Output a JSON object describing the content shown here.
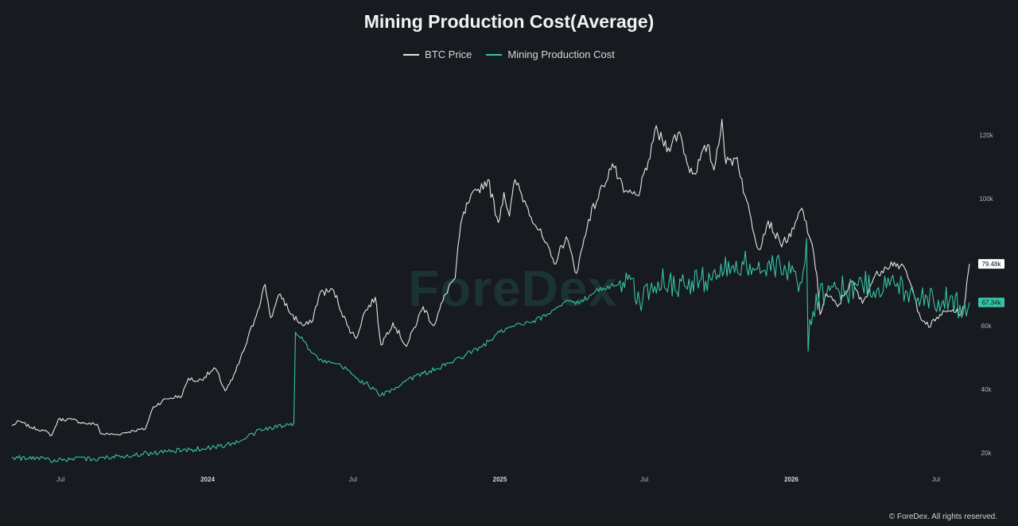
{
  "chart_data": {
    "type": "line",
    "title": "Mining Production Cost(Average)",
    "legend_position": "top-center",
    "grid": false,
    "x_range": [
      "2023-05-01",
      "2026-08-15"
    ],
    "ylim": [
      15000,
      130000
    ],
    "y_axis_side": "right",
    "x_ticks": [
      {
        "date": "2023-07-01",
        "label": "Jul",
        "bold": false
      },
      {
        "date": "2024-01-01",
        "label": "2024",
        "bold": true
      },
      {
        "date": "2024-07-01",
        "label": "Jul",
        "bold": false
      },
      {
        "date": "2025-01-01",
        "label": "2025",
        "bold": true
      },
      {
        "date": "2025-07-01",
        "label": "Jul",
        "bold": false
      },
      {
        "date": "2026-01-01",
        "label": "2026",
        "bold": true
      },
      {
        "date": "2026-07-01",
        "label": "Jul",
        "bold": false
      }
    ],
    "y_ticks": [
      {
        "value": 20000,
        "label": "20k"
      },
      {
        "value": 40000,
        "label": "40k"
      },
      {
        "value": 60000,
        "label": "60k"
      },
      {
        "value": 100000,
        "label": "100k"
      },
      {
        "value": 120000,
        "label": "120k"
      }
    ],
    "series": [
      {
        "name": "BTC Price",
        "color": "#e6e6e6",
        "last_value_label": "79.48k",
        "points": [
          [
            "2023-05-01",
            28500
          ],
          [
            "2023-05-10",
            30000
          ],
          [
            "2023-05-25",
            28000
          ],
          [
            "2023-06-10",
            27000
          ],
          [
            "2023-06-20",
            25500
          ],
          [
            "2023-06-28",
            30500
          ],
          [
            "2023-07-15",
            30500
          ],
          [
            "2023-07-31",
            29300
          ],
          [
            "2023-08-16",
            29000
          ],
          [
            "2023-08-20",
            26000
          ],
          [
            "2023-09-10",
            25800
          ],
          [
            "2023-09-30",
            27000
          ],
          [
            "2023-10-15",
            27500
          ],
          [
            "2023-10-25",
            34500
          ],
          [
            "2023-11-10",
            37000
          ],
          [
            "2023-11-30",
            38000
          ],
          [
            "2023-12-08",
            43500
          ],
          [
            "2023-12-20",
            42500
          ],
          [
            "2024-01-11",
            46500
          ],
          [
            "2024-01-23",
            39500
          ],
          [
            "2024-02-01",
            43000
          ],
          [
            "2024-02-15",
            52000
          ],
          [
            "2024-02-29",
            62000
          ],
          [
            "2024-03-13",
            73000
          ],
          [
            "2024-03-20",
            62500
          ],
          [
            "2024-04-01",
            70000
          ],
          [
            "2024-04-15",
            63500
          ],
          [
            "2024-04-30",
            60000
          ],
          [
            "2024-05-10",
            61000
          ],
          [
            "2024-05-21",
            70500
          ],
          [
            "2024-06-07",
            71000
          ],
          [
            "2024-06-24",
            60000
          ],
          [
            "2024-07-05",
            56000
          ],
          [
            "2024-07-15",
            64000
          ],
          [
            "2024-07-29",
            69000
          ],
          [
            "2024-08-05",
            54000
          ],
          [
            "2024-08-20",
            61000
          ],
          [
            "2024-09-06",
            53500
          ],
          [
            "2024-09-27",
            66000
          ],
          [
            "2024-10-10",
            60000
          ],
          [
            "2024-10-29",
            72500
          ],
          [
            "2024-11-06",
            75000
          ],
          [
            "2024-11-13",
            92000
          ],
          [
            "2024-11-22",
            98500
          ],
          [
            "2024-12-05",
            103000
          ],
          [
            "2024-12-17",
            106000
          ],
          [
            "2024-12-30",
            92500
          ],
          [
            "2025-01-06",
            102000
          ],
          [
            "2025-01-13",
            94500
          ],
          [
            "2025-01-20",
            106000
          ],
          [
            "2025-02-03",
            98000
          ],
          [
            "2025-02-25",
            87000
          ],
          [
            "2025-03-10",
            79500
          ],
          [
            "2025-03-25",
            88000
          ],
          [
            "2025-04-07",
            76500
          ],
          [
            "2025-04-22",
            93500
          ],
          [
            "2025-05-10",
            104000
          ],
          [
            "2025-05-22",
            111000
          ],
          [
            "2025-06-05",
            102000
          ],
          [
            "2025-06-22",
            101000
          ],
          [
            "2025-07-04",
            109000
          ],
          [
            "2025-07-14",
            121500
          ],
          [
            "2025-07-31",
            116000
          ],
          [
            "2025-08-14",
            121000
          ],
          [
            "2025-08-25",
            110000
          ],
          [
            "2025-09-01",
            108000
          ],
          [
            "2025-09-18",
            117000
          ],
          [
            "2025-09-26",
            109000
          ],
          [
            "2025-10-06",
            125000
          ],
          [
            "2025-10-11",
            111000
          ],
          [
            "2025-10-25",
            113000
          ],
          [
            "2025-11-04",
            101000
          ],
          [
            "2025-11-21",
            84000
          ],
          [
            "2025-12-03",
            93000
          ],
          [
            "2025-12-18",
            86000
          ],
          [
            "2025-12-31",
            88000
          ],
          [
            "2026-01-14",
            97000
          ],
          [
            "2026-01-25",
            87000
          ],
          [
            "2026-02-02",
            76000
          ],
          [
            "2026-02-06",
            63500
          ],
          [
            "2026-02-14",
            70000
          ],
          [
            "2026-02-28",
            66000
          ],
          [
            "2026-03-17",
            74000
          ],
          [
            "2026-03-31",
            67000
          ],
          [
            "2026-04-14",
            75000
          ],
          [
            "2026-04-28",
            78500
          ],
          [
            "2026-05-10",
            80000
          ],
          [
            "2026-05-25",
            77000
          ],
          [
            "2026-06-10",
            64000
          ],
          [
            "2026-06-22",
            59500
          ],
          [
            "2026-07-06",
            63500
          ],
          [
            "2026-07-22",
            65000
          ],
          [
            "2026-08-02",
            63500
          ],
          [
            "2026-08-07",
            69000
          ],
          [
            "2026-08-12",
            79480
          ]
        ]
      },
      {
        "name": "Mining Production Cost",
        "color": "#35c4a7",
        "last_value_label": "67.34k",
        "points": [
          [
            "2023-05-01",
            18700
          ],
          [
            "2023-05-20",
            18200
          ],
          [
            "2023-06-10",
            18500
          ],
          [
            "2023-06-25",
            17300
          ],
          [
            "2023-07-15",
            18200
          ],
          [
            "2023-08-10",
            18000
          ],
          [
            "2023-09-10",
            19000
          ],
          [
            "2023-10-10",
            19600
          ],
          [
            "2023-11-10",
            20400
          ],
          [
            "2023-12-10",
            21000
          ],
          [
            "2024-01-10",
            21800
          ],
          [
            "2024-02-10",
            23500
          ],
          [
            "2024-03-01",
            26500
          ],
          [
            "2024-03-20",
            28000
          ],
          [
            "2024-04-05",
            28500
          ],
          [
            "2024-04-18",
            29300
          ],
          [
            "2024-04-20",
            58000
          ],
          [
            "2024-04-28",
            56500
          ],
          [
            "2024-05-10",
            51500
          ],
          [
            "2024-05-25",
            48500
          ],
          [
            "2024-06-10",
            48000
          ],
          [
            "2024-06-25",
            46000
          ],
          [
            "2024-07-05",
            43500
          ],
          [
            "2024-07-20",
            41500
          ],
          [
            "2024-08-05",
            38000
          ],
          [
            "2024-08-20",
            40000
          ],
          [
            "2024-09-06",
            43000
          ],
          [
            "2024-09-27",
            45000
          ],
          [
            "2024-10-15",
            46500
          ],
          [
            "2024-11-01",
            48500
          ],
          [
            "2024-11-20",
            51000
          ],
          [
            "2024-12-10",
            53500
          ],
          [
            "2025-01-01",
            58000
          ],
          [
            "2025-01-20",
            60000
          ],
          [
            "2025-02-10",
            61000
          ],
          [
            "2025-03-01",
            63500
          ],
          [
            "2025-03-25",
            68000
          ],
          [
            "2025-04-10",
            67000
          ],
          [
            "2025-05-01",
            71000
          ],
          [
            "2025-05-20",
            72500
          ],
          [
            "2025-06-10",
            74500
          ],
          [
            "2025-06-25",
            67500
          ],
          [
            "2025-07-10",
            73500
          ],
          [
            "2025-08-01",
            74000
          ],
          [
            "2025-08-20",
            72500
          ],
          [
            "2025-09-10",
            74500
          ],
          [
            "2025-10-01",
            76000
          ],
          [
            "2025-10-20",
            79000
          ],
          [
            "2025-11-10",
            79500
          ],
          [
            "2025-11-25",
            77000
          ],
          [
            "2025-12-10",
            78500
          ],
          [
            "2025-12-31",
            76500
          ],
          [
            "2026-01-14",
            73500
          ],
          [
            "2026-01-20",
            87500
          ],
          [
            "2026-01-22",
            52000
          ],
          [
            "2026-01-24",
            62000
          ],
          [
            "2026-02-05",
            70000
          ],
          [
            "2026-02-20",
            72500
          ],
          [
            "2026-03-10",
            71000
          ],
          [
            "2026-03-31",
            73000
          ],
          [
            "2026-04-20",
            72000
          ],
          [
            "2026-05-10",
            73000
          ],
          [
            "2026-05-30",
            71000
          ],
          [
            "2026-06-20",
            69000
          ],
          [
            "2026-07-10",
            68000
          ],
          [
            "2026-07-31",
            66500
          ],
          [
            "2026-08-12",
            67340
          ]
        ]
      }
    ]
  },
  "watermark": "ForeDex",
  "copyright": "© ForeDex. All rights reserved."
}
